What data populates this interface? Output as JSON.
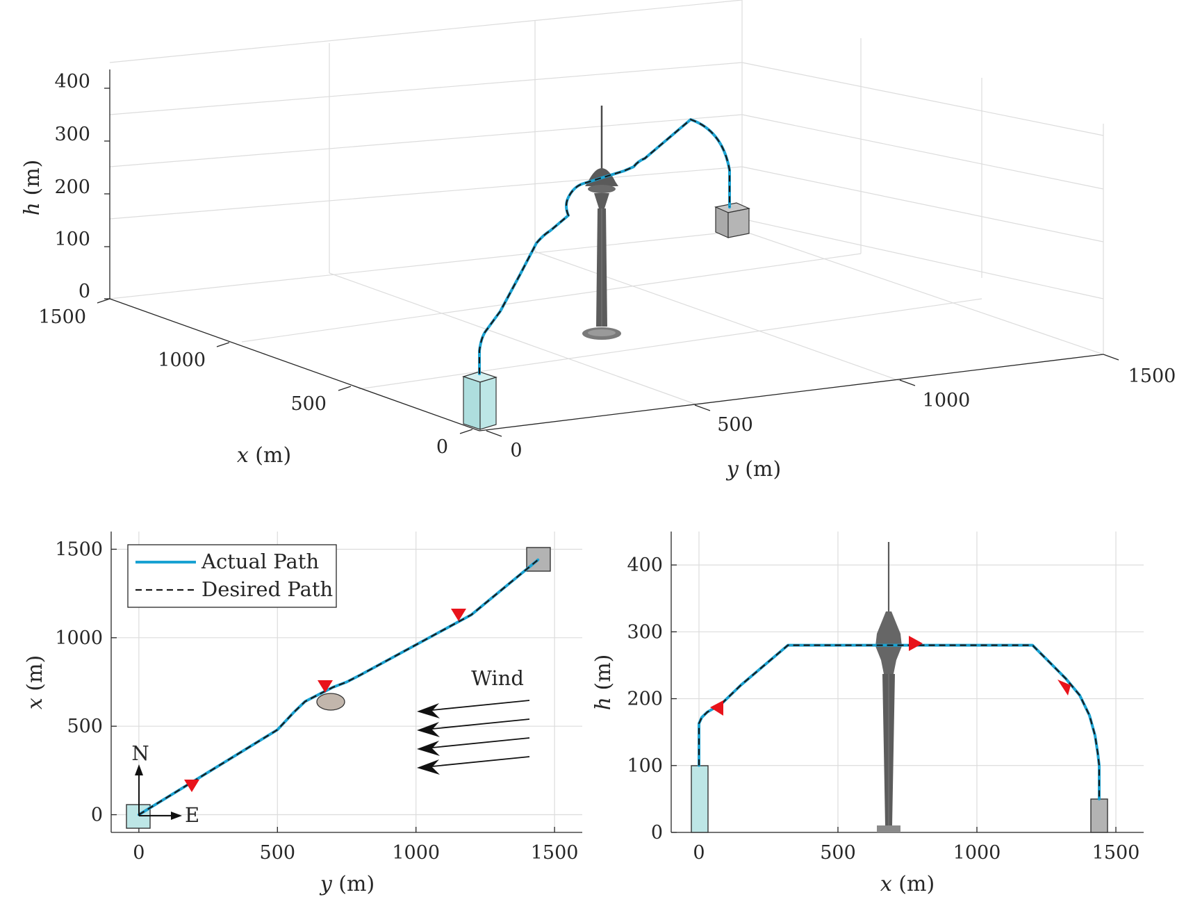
{
  "chart_data": [
    {
      "type": "line",
      "subtype": "3d",
      "xlabel_var": "x",
      "xlabel_unit": " (m)",
      "ylabel_var": "y",
      "ylabel_unit": " (m)",
      "zlabel_var": "h",
      "zlabel_unit": " (m)",
      "x_ticks": [
        "0",
        "500",
        "1000",
        "1500"
      ],
      "y_ticks": [
        "0",
        "500",
        "1000",
        "1500"
      ],
      "z_ticks": [
        "0",
        "100",
        "200",
        "300",
        "400"
      ],
      "xlim": [
        0,
        1500
      ],
      "ylim": [
        0,
        1500
      ],
      "zlim": [
        0,
        400
      ],
      "grid": true,
      "series": [
        {
          "name": "Actual Path",
          "color": "#1aa2d2",
          "x": [
            0,
            0,
            10,
            40,
            120,
            200,
            330,
            440,
            520,
            560,
            600,
            700,
            800,
            1000,
            1200,
            1250,
            1330,
            1400,
            1430,
            1440
          ],
          "y": [
            0,
            0,
            20,
            60,
            170,
            300,
            400,
            470,
            520,
            560,
            650,
            780,
            850,
            1000,
            1200,
            1250,
            1330,
            1400,
            1430,
            1440
          ],
          "h": [
            100,
            160,
            175,
            190,
            225,
            260,
            275,
            280,
            280,
            280,
            280,
            280,
            280,
            280,
            280,
            270,
            230,
            170,
            120,
            50
          ]
        }
      ]
    },
    {
      "type": "line",
      "xlabel_var": "y",
      "xlabel_unit": " (m)",
      "ylabel_var": "x",
      "ylabel_unit": " (m)",
      "x_ticks": [
        "0",
        "500",
        "1000",
        "1500"
      ],
      "y_ticks": [
        "0",
        "500",
        "1000",
        "1500"
      ],
      "xlim": [
        -100,
        1600
      ],
      "ylim": [
        -100,
        1600
      ],
      "grid": true,
      "legend_position": "top-left",
      "series": [
        {
          "name": "Actual Path",
          "color": "#1aa2d2",
          "x": [
            0,
            500,
            530,
            560,
            600,
            650,
            700,
            750,
            800,
            1000,
            1200,
            1440
          ],
          "y": [
            0,
            480,
            530,
            580,
            640,
            680,
            720,
            750,
            790,
            960,
            1130,
            1440
          ]
        },
        {
          "name": "Desired Path",
          "color": "#1a1a1a",
          "x": [
            0,
            500,
            530,
            560,
            600,
            650,
            700,
            750,
            800,
            1000,
            1200,
            1440
          ],
          "y": [
            0,
            480,
            530,
            580,
            640,
            680,
            720,
            750,
            790,
            960,
            1130,
            1440
          ]
        }
      ],
      "annotations": {
        "wind": "Wind",
        "north": "N",
        "east": "E"
      }
    },
    {
      "type": "line",
      "xlabel_var": "x",
      "xlabel_unit": " (m)",
      "ylabel_var": "h",
      "ylabel_unit": " (m)",
      "x_ticks": [
        "0",
        "500",
        "1000",
        "1500"
      ],
      "y_ticks": [
        "0",
        "100",
        "200",
        "300",
        "400"
      ],
      "xlim": [
        -100,
        1600
      ],
      "ylim": [
        0,
        450
      ],
      "grid": true,
      "series": [
        {
          "name": "Actual Path",
          "color": "#1aa2d2",
          "x": [
            0,
            0,
            10,
            30,
            80,
            150,
            320,
            600,
            900,
            1200,
            1260,
            1320,
            1370,
            1405,
            1425,
            1435,
            1440,
            1440
          ],
          "y": [
            100,
            163,
            172,
            180,
            192,
            220,
            280,
            280,
            280,
            280,
            255,
            230,
            205,
            175,
            145,
            118,
            100,
            50
          ]
        },
        {
          "name": "Desired Path",
          "color": "#1a1a1a",
          "x": [
            0,
            0,
            10,
            30,
            80,
            150,
            320,
            600,
            900,
            1200,
            1260,
            1320,
            1370,
            1405,
            1425,
            1435,
            1440,
            1440
          ],
          "y": [
            100,
            163,
            172,
            180,
            192,
            220,
            280,
            280,
            280,
            280,
            255,
            230,
            205,
            175,
            145,
            118,
            100,
            50
          ]
        }
      ]
    }
  ],
  "colors": {
    "start_box": "#bde6e6",
    "end_box": "#b3b3b3",
    "path": "#1aa2d2",
    "arrow_marker": "#e8131b",
    "tower": "#5c5c5c",
    "obstacle": "#c2b6ac"
  }
}
